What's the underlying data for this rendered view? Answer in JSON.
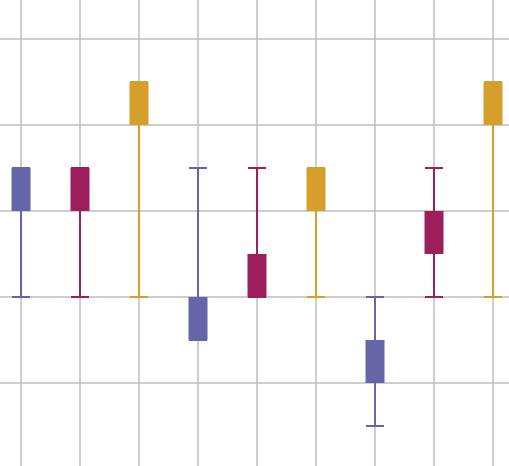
{
  "chart_data": {
    "type": "candlestick",
    "x": [
      0,
      1,
      2,
      3,
      4,
      5,
      6,
      7,
      8
    ],
    "open": [
      1,
      1,
      2,
      0,
      0,
      1,
      -0.5,
      0.5,
      2
    ],
    "close": [
      1.5,
      1.5,
      2.5,
      -0.5,
      0.5,
      1.5,
      -1,
      1,
      2.5
    ],
    "low": [
      0,
      0,
      0,
      -0.5,
      0,
      0,
      -1.5,
      0,
      0
    ],
    "high": [
      1.5,
      1.5,
      2.5,
      1.5,
      1.5,
      1.5,
      0,
      1.5,
      2.5
    ],
    "colors": [
      "#6466a8",
      "#9c1f5c",
      "#d69e2a",
      "#6466a8",
      "#9c1f5c",
      "#d69e2a",
      "#6466a8",
      "#9c1f5c",
      "#d69e2a"
    ],
    "xlim": [
      -0.356,
      8.271
    ],
    "ylim": [
      -1.965,
      3.453
    ],
    "xticks": [
      0,
      1,
      2,
      3,
      4,
      5,
      6,
      7,
      8
    ],
    "yticks": [
      -1,
      0,
      1,
      2,
      3
    ],
    "grid": true
  }
}
